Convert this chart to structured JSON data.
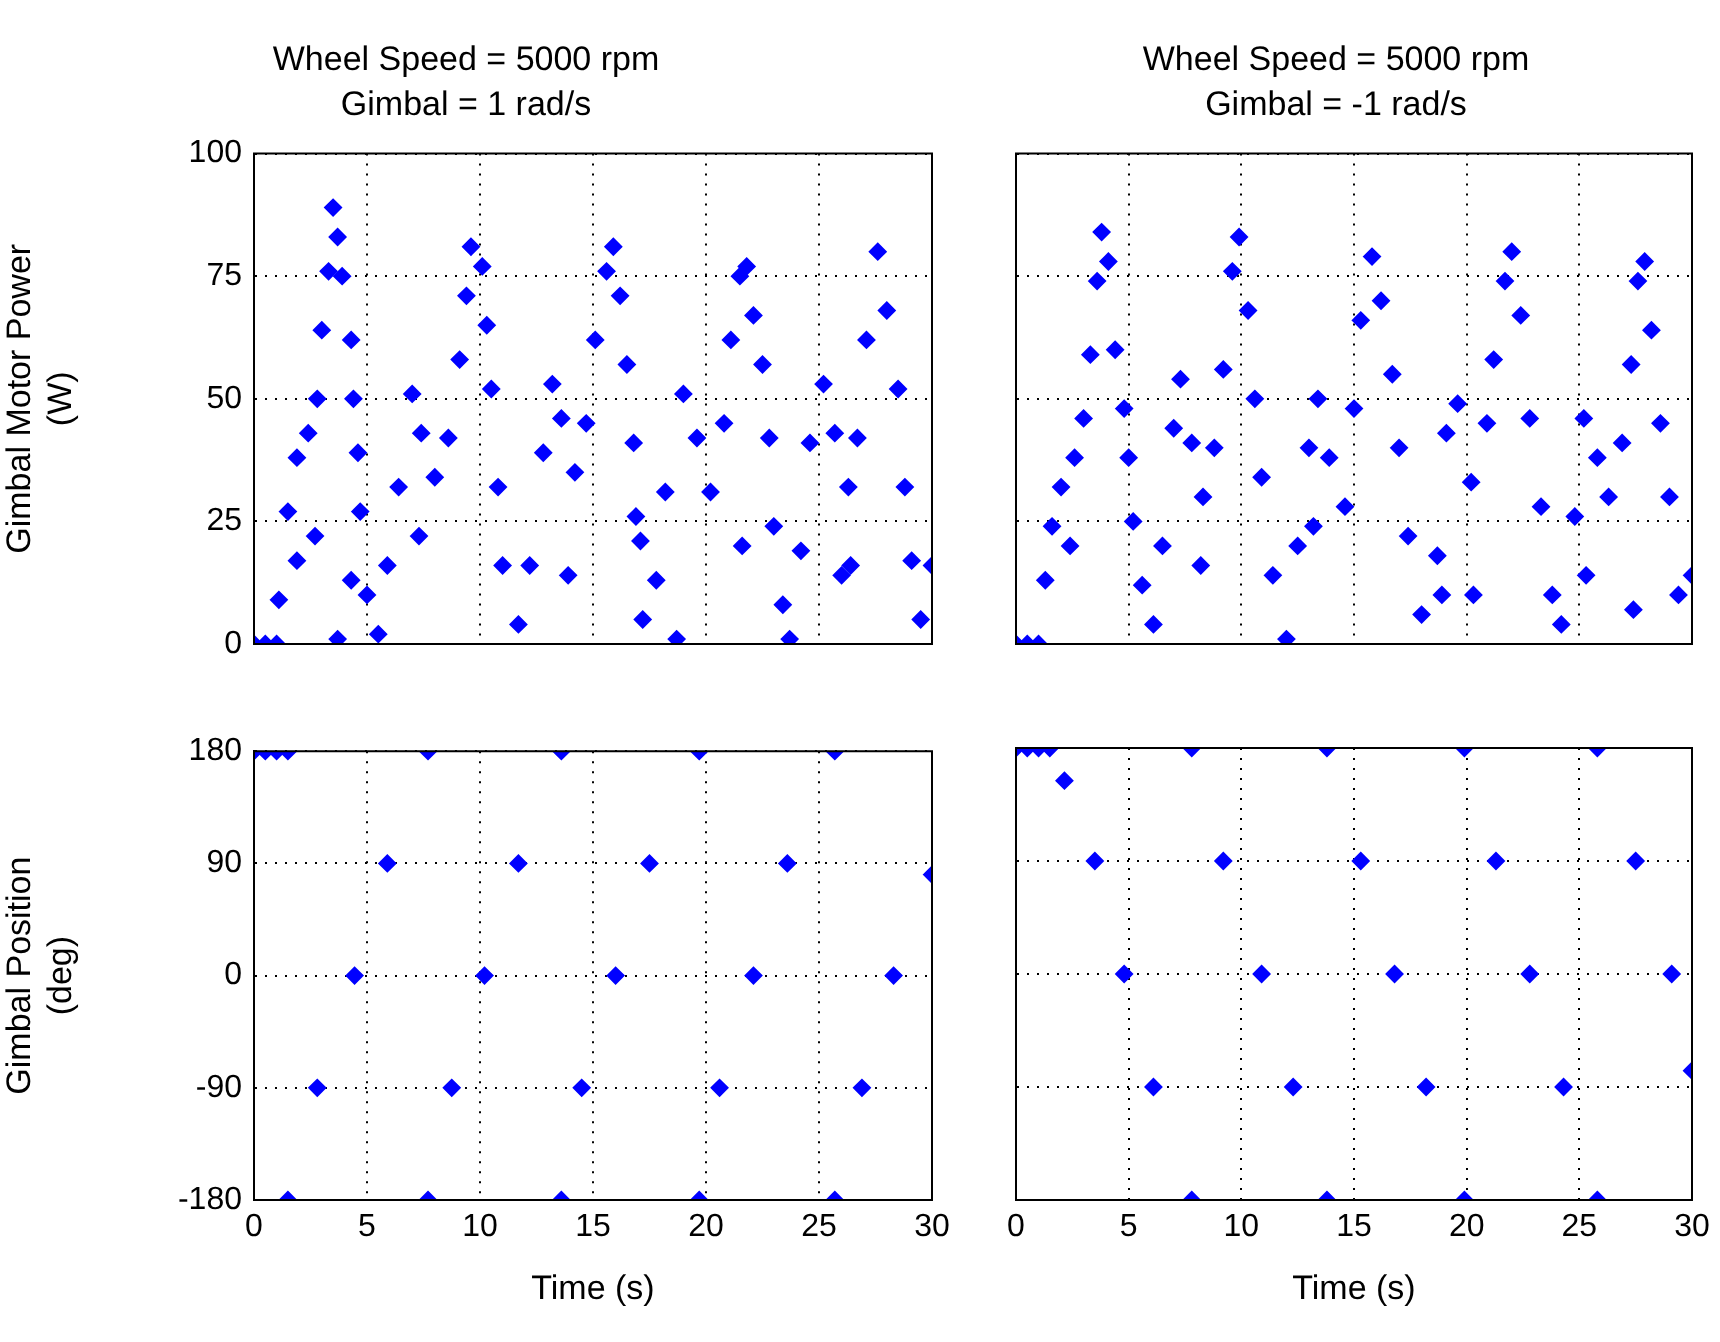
{
  "chart_data": [
    {
      "type": "scatter",
      "title": "Wheel Speed = 5000 rpm",
      "subtitle": "Gimbal = 1 rad/s",
      "ylabel": "Gimbal Motor Power (W)",
      "color": "#0000ff",
      "marker": "diamond",
      "grid": true,
      "tick_labels": "y",
      "x": [
        0,
        0.5,
        1.0,
        1.1,
        1.5,
        1.9,
        2.4,
        2.8,
        3.0,
        3.3,
        3.5,
        3.7,
        3.9,
        4.3,
        4.4,
        4.6,
        4.7,
        5.0,
        5.5,
        1.9,
        2.7,
        3.7,
        4.3,
        5.9,
        6.4,
        7.0,
        7.4,
        8.0,
        8.6,
        9.1,
        9.4,
        9.6,
        10.1,
        10.3,
        10.5,
        10.8,
        11.0,
        11.7,
        12.2,
        12.8,
        13.2,
        13.6,
        14.2,
        14.7,
        15.1,
        15.6,
        15.9,
        16.2,
        16.5,
        16.8,
        16.9,
        17.2,
        17.8,
        18.2,
        19.0,
        19.6,
        20.2,
        20.8,
        21.1,
        21.5,
        21.8,
        22.1,
        22.5,
        22.8,
        23.0,
        23.4,
        23.7,
        24.2,
        24.6,
        25.2,
        25.7,
        26.3,
        26.7,
        27.1,
        27.6,
        28.0,
        28.5,
        28.8,
        29.1,
        29.5,
        30,
        7.3,
        13.9,
        17.1,
        18.7,
        21.6,
        26.0,
        26.4
      ],
      "values": [
        0,
        0,
        0,
        9,
        27,
        38,
        43,
        50,
        64,
        76,
        89,
        83,
        75,
        62,
        50,
        39,
        27,
        10,
        2,
        17,
        22,
        1,
        13,
        16,
        32,
        51,
        43,
        34,
        42,
        58,
        71,
        81,
        77,
        65,
        52,
        32,
        16,
        4,
        16,
        39,
        53,
        46,
        35,
        45,
        62,
        76,
        81,
        71,
        57,
        41,
        26,
        5,
        13,
        31,
        51,
        42,
        31,
        45,
        62,
        75,
        77,
        67,
        57,
        42,
        24,
        8,
        1,
        19,
        41,
        53,
        43,
        32,
        42,
        62,
        80,
        68,
        52,
        32,
        17,
        5,
        16,
        22,
        14,
        21,
        1,
        20,
        14,
        16
      ],
      "xlim": [
        0,
        30
      ],
      "xticks": [
        0,
        5,
        10,
        15,
        20,
        25,
        30
      ],
      "ylim": [
        0,
        100
      ],
      "yticks": [
        0,
        25,
        50,
        75,
        100
      ]
    },
    {
      "type": "scatter",
      "title": "Wheel Speed = 5000 rpm",
      "subtitle": "Gimbal = -1 rad/s",
      "color": "#0000ff",
      "marker": "diamond",
      "grid": true,
      "tick_labels": false,
      "x": [
        0,
        0.5,
        1.0,
        1.3,
        1.6,
        2.0,
        2.6,
        3.0,
        3.3,
        3.6,
        3.8,
        4.1,
        4.4,
        4.8,
        5.0,
        5.2,
        5.6,
        6.1,
        6.5,
        7.0,
        7.3,
        7.8,
        8.3,
        8.8,
        9.2,
        9.6,
        9.9,
        10.3,
        10.6,
        10.9,
        11.4,
        12.0,
        12.5,
        13.0,
        13.4,
        13.9,
        14.6,
        15.0,
        15.3,
        15.8,
        16.2,
        16.7,
        17.0,
        17.4,
        18.0,
        18.7,
        19.1,
        19.6,
        20.2,
        20.9,
        21.2,
        21.7,
        22.0,
        22.4,
        22.8,
        23.3,
        23.8,
        24.2,
        24.8,
        25.2,
        25.8,
        26.3,
        26.9,
        27.3,
        27.6,
        27.9,
        28.2,
        28.6,
        29.0,
        29.4,
        30,
        2.4,
        8.2,
        13.2,
        18.9,
        20.3,
        25.3,
        27.4
      ],
      "values": [
        0,
        0,
        0,
        13,
        24,
        32,
        38,
        46,
        59,
        74,
        84,
        78,
        60,
        48,
        38,
        25,
        12,
        4,
        20,
        44,
        54,
        41,
        30,
        40,
        56,
        76,
        83,
        68,
        50,
        34,
        14,
        1,
        20,
        40,
        50,
        38,
        28,
        48,
        66,
        79,
        70,
        55,
        40,
        22,
        6,
        18,
        43,
        49,
        33,
        45,
        58,
        74,
        80,
        67,
        46,
        28,
        10,
        4,
        26,
        46,
        38,
        30,
        41,
        57,
        74,
        78,
        64,
        45,
        30,
        10,
        14,
        20,
        16,
        24,
        10,
        10,
        14,
        7
      ],
      "xlim": [
        0,
        30
      ],
      "xticks": [
        0,
        5,
        10,
        15,
        20,
        25,
        30
      ],
      "ylim": [
        0,
        100
      ],
      "yticks": [
        0,
        25,
        50,
        75,
        100
      ]
    },
    {
      "type": "scatter",
      "xlabel": "Time (s)",
      "ylabel": "Gimbal Position (deg)",
      "color": "#0000ff",
      "marker": "diamond",
      "grid": true,
      "x": [
        0,
        0.5,
        1.0,
        1.5,
        1.5,
        2.8,
        4.45,
        5.9,
        7.7,
        7.7,
        8.75,
        10.2,
        11.7,
        13.6,
        13.6,
        14.5,
        16.0,
        17.5,
        19.7,
        19.7,
        20.6,
        22.1,
        23.6,
        25.7,
        25.7,
        26.9,
        28.3,
        30
      ],
      "values": [
        180,
        180,
        180,
        180,
        -180,
        -90,
        0,
        90,
        180,
        -180,
        -90,
        0,
        90,
        180,
        -180,
        -90,
        0,
        90,
        180,
        -180,
        -90,
        0,
        90,
        180,
        -180,
        -90,
        0,
        81
      ],
      "xlim": [
        0,
        30
      ],
      "xticks": [
        0,
        5,
        10,
        15,
        20,
        25,
        30
      ],
      "ylim": [
        -180,
        180
      ],
      "yticks": [
        -180,
        -90,
        0,
        90,
        180
      ]
    },
    {
      "type": "scatter",
      "xlabel": "Time (s)",
      "color": "#0000ff",
      "marker": "diamond",
      "grid": true,
      "tick_labels": "x",
      "x": [
        0,
        0.5,
        1.0,
        1.5,
        2.15,
        3.5,
        4.8,
        6.1,
        7.8,
        7.8,
        9.2,
        10.9,
        12.3,
        13.8,
        13.8,
        15.3,
        16.8,
        18.2,
        19.9,
        19.9,
        21.3,
        22.8,
        24.3,
        25.8,
        25.8,
        27.5,
        29.1,
        30
      ],
      "values": [
        180,
        180,
        180,
        180,
        154,
        90,
        0,
        -90,
        -180,
        180,
        90,
        0,
        -90,
        -180,
        180,
        90,
        0,
        -90,
        -180,
        180,
        90,
        0,
        -90,
        -180,
        180,
        90,
        0,
        -77
      ],
      "xlim": [
        0,
        30
      ],
      "xticks": [
        0,
        5,
        10,
        15,
        20,
        25,
        30
      ],
      "ylim": [
        -180,
        180
      ],
      "yticks": [
        -180,
        -90,
        0,
        90,
        180
      ]
    }
  ]
}
